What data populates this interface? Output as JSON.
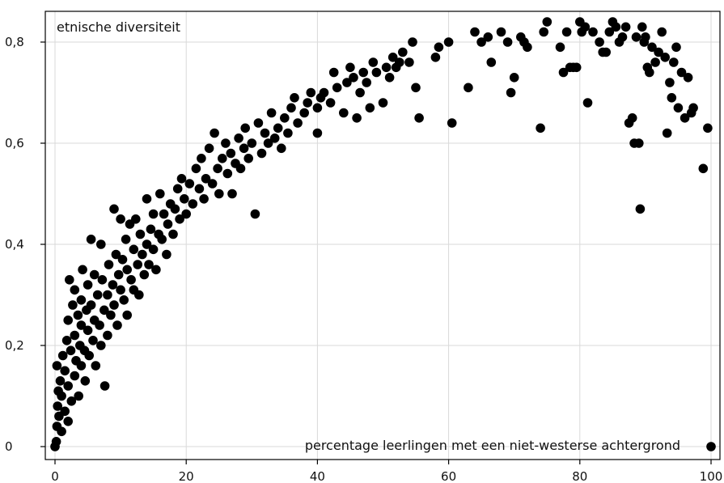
{
  "chart_data": {
    "type": "scatter",
    "title": "",
    "xlabel": "percentage leerlingen met een niet-westerse achtergrond",
    "ylabel": "etnische diversiteit",
    "xlim": [
      0,
      100
    ],
    "ylim": [
      0,
      0.85
    ],
    "x_ticks": [
      0,
      20,
      40,
      60,
      80,
      100
    ],
    "x_tick_labels": [
      "0",
      "20",
      "40",
      "60",
      "80",
      "100"
    ],
    "y_ticks": [
      0,
      0.2,
      0.4,
      0.6,
      0.8
    ],
    "y_tick_labels": [
      "0",
      "0,2",
      "0,4",
      "0,6",
      "0,8"
    ],
    "grid": true,
    "point_color": "#000000",
    "series": [
      {
        "values": [
          [
            0,
            0
          ],
          [
            0.2,
            0.01
          ],
          [
            0.3,
            0.04
          ],
          [
            0.4,
            0.08
          ],
          [
            0.5,
            0.11
          ],
          [
            0.3,
            0.16
          ],
          [
            0.6,
            0.06
          ],
          [
            0.8,
            0.13
          ],
          [
            1,
            0.03
          ],
          [
            1,
            0.1
          ],
          [
            1.2,
            0.18
          ],
          [
            1.5,
            0.07
          ],
          [
            1.5,
            0.15
          ],
          [
            1.8,
            0.21
          ],
          [
            2,
            0.05
          ],
          [
            2,
            0.12
          ],
          [
            2,
            0.25
          ],
          [
            2.2,
            0.33
          ],
          [
            2.4,
            0.19
          ],
          [
            2.5,
            0.09
          ],
          [
            2.7,
            0.28
          ],
          [
            3,
            0.14
          ],
          [
            3,
            0.22
          ],
          [
            3,
            0.31
          ],
          [
            3.2,
            0.17
          ],
          [
            3.5,
            0.26
          ],
          [
            3.6,
            0.1
          ],
          [
            3.8,
            0.2
          ],
          [
            4,
            0.16
          ],
          [
            4,
            0.29
          ],
          [
            4,
            0.24
          ],
          [
            4.2,
            0.35
          ],
          [
            4.5,
            0.19
          ],
          [
            4.6,
            0.13
          ],
          [
            4.8,
            0.27
          ],
          [
            5,
            0.23
          ],
          [
            5,
            0.32
          ],
          [
            5.2,
            0.18
          ],
          [
            5.5,
            0.41
          ],
          [
            5.5,
            0.28
          ],
          [
            5.8,
            0.21
          ],
          [
            6,
            0.25
          ],
          [
            6,
            0.34
          ],
          [
            6.2,
            0.16
          ],
          [
            6.5,
            0.3
          ],
          [
            6.8,
            0.24
          ],
          [
            7,
            0.4
          ],
          [
            7,
            0.2
          ],
          [
            7.2,
            0.33
          ],
          [
            7.5,
            0.27
          ],
          [
            7.6,
            0.12
          ],
          [
            8,
            0.3
          ],
          [
            8,
            0.22
          ],
          [
            8.2,
            0.36
          ],
          [
            8.5,
            0.26
          ],
          [
            8.8,
            0.32
          ],
          [
            9,
            0.47
          ],
          [
            9,
            0.28
          ],
          [
            9.3,
            0.38
          ],
          [
            9.5,
            0.24
          ],
          [
            9.7,
            0.34
          ],
          [
            10,
            0.45
          ],
          [
            10,
            0.31
          ],
          [
            10.3,
            0.37
          ],
          [
            10.5,
            0.29
          ],
          [
            10.8,
            0.41
          ],
          [
            11,
            0.35
          ],
          [
            11,
            0.26
          ],
          [
            11.4,
            0.44
          ],
          [
            11.6,
            0.33
          ],
          [
            12,
            0.39
          ],
          [
            12,
            0.31
          ],
          [
            12.3,
            0.45
          ],
          [
            12.6,
            0.36
          ],
          [
            12.8,
            0.3
          ],
          [
            13,
            0.42
          ],
          [
            13.3,
            0.38
          ],
          [
            13.6,
            0.34
          ],
          [
            14,
            0.49
          ],
          [
            14,
            0.4
          ],
          [
            14.3,
            0.36
          ],
          [
            14.6,
            0.43
          ],
          [
            15,
            0.39
          ],
          [
            15,
            0.46
          ],
          [
            15.4,
            0.35
          ],
          [
            15.8,
            0.42
          ],
          [
            16,
            0.5
          ],
          [
            16.3,
            0.41
          ],
          [
            16.6,
            0.46
          ],
          [
            17,
            0.38
          ],
          [
            17.2,
            0.44
          ],
          [
            17.6,
            0.48
          ],
          [
            18,
            0.42
          ],
          [
            18.3,
            0.47
          ],
          [
            18.7,
            0.51
          ],
          [
            19,
            0.45
          ],
          [
            19.3,
            0.53
          ],
          [
            19.7,
            0.49
          ],
          [
            20,
            0.46
          ],
          [
            20.5,
            0.52
          ],
          [
            21,
            0.48
          ],
          [
            21.5,
            0.55
          ],
          [
            22,
            0.51
          ],
          [
            22.3,
            0.57
          ],
          [
            22.7,
            0.49
          ],
          [
            23,
            0.53
          ],
          [
            23.5,
            0.59
          ],
          [
            24,
            0.52
          ],
          [
            24.3,
            0.62
          ],
          [
            24.8,
            0.55
          ],
          [
            25,
            0.5
          ],
          [
            25.5,
            0.57
          ],
          [
            26,
            0.6
          ],
          [
            26.3,
            0.54
          ],
          [
            26.8,
            0.58
          ],
          [
            27,
            0.5
          ],
          [
            27.5,
            0.56
          ],
          [
            28,
            0.61
          ],
          [
            28.3,
            0.55
          ],
          [
            28.8,
            0.59
          ],
          [
            29,
            0.63
          ],
          [
            29.5,
            0.57
          ],
          [
            30,
            0.6
          ],
          [
            30.5,
            0.46
          ],
          [
            31,
            0.64
          ],
          [
            31.5,
            0.58
          ],
          [
            32,
            0.62
          ],
          [
            32.5,
            0.6
          ],
          [
            33,
            0.66
          ],
          [
            33.5,
            0.61
          ],
          [
            34,
            0.63
          ],
          [
            34.5,
            0.59
          ],
          [
            35,
            0.65
          ],
          [
            35.5,
            0.62
          ],
          [
            36,
            0.67
          ],
          [
            36.5,
            0.69
          ],
          [
            37,
            0.64
          ],
          [
            38,
            0.66
          ],
          [
            38.5,
            0.68
          ],
          [
            39,
            0.7
          ],
          [
            40,
            0.67
          ],
          [
            40,
            0.62
          ],
          [
            40.5,
            0.69
          ],
          [
            41,
            0.7
          ],
          [
            42,
            0.68
          ],
          [
            42.5,
            0.74
          ],
          [
            43,
            0.71
          ],
          [
            44,
            0.66
          ],
          [
            44.5,
            0.72
          ],
          [
            45,
            0.75
          ],
          [
            45.5,
            0.73
          ],
          [
            46,
            0.65
          ],
          [
            46.5,
            0.7
          ],
          [
            47,
            0.74
          ],
          [
            47.5,
            0.72
          ],
          [
            48,
            0.67
          ],
          [
            48.5,
            0.76
          ],
          [
            49,
            0.74
          ],
          [
            50,
            0.68
          ],
          [
            50.5,
            0.75
          ],
          [
            51,
            0.73
          ],
          [
            51.5,
            0.77
          ],
          [
            52,
            0.75
          ],
          [
            52.5,
            0.76
          ],
          [
            53,
            0.78
          ],
          [
            54,
            0.76
          ],
          [
            54.5,
            0.8
          ],
          [
            55,
            0.71
          ],
          [
            55.5,
            0.65
          ],
          [
            58,
            0.77
          ],
          [
            58.5,
            0.79
          ],
          [
            60,
            0.8
          ],
          [
            60.5,
            0.64
          ],
          [
            63,
            0.71
          ],
          [
            64,
            0.82
          ],
          [
            65,
            0.8
          ],
          [
            66,
            0.81
          ],
          [
            66.5,
            0.76
          ],
          [
            68,
            0.82
          ],
          [
            69,
            0.8
          ],
          [
            69.5,
            0.7
          ],
          [
            70,
            0.73
          ],
          [
            71,
            0.81
          ],
          [
            71.5,
            0.8
          ],
          [
            72,
            0.79
          ],
          [
            74,
            0.63
          ],
          [
            74.5,
            0.82
          ],
          [
            75,
            0.84
          ],
          [
            77,
            0.79
          ],
          [
            77.5,
            0.74
          ],
          [
            78,
            0.82
          ],
          [
            78.5,
            0.75
          ],
          [
            79,
            0.75
          ],
          [
            79.5,
            0.75
          ],
          [
            80,
            0.84
          ],
          [
            80.3,
            0.82
          ],
          [
            80.8,
            0.83
          ],
          [
            81.2,
            0.68
          ],
          [
            82,
            0.82
          ],
          [
            83,
            0.8
          ],
          [
            83.5,
            0.78
          ],
          [
            84,
            0.78
          ],
          [
            84.5,
            0.82
          ],
          [
            85,
            0.84
          ],
          [
            85.5,
            0.83
          ],
          [
            86,
            0.8
          ],
          [
            86.5,
            0.81
          ],
          [
            87,
            0.83
          ],
          [
            87.5,
            0.64
          ],
          [
            88,
            0.65
          ],
          [
            88.3,
            0.6
          ],
          [
            88.6,
            0.81
          ],
          [
            89,
            0.6
          ],
          [
            89.2,
            0.47
          ],
          [
            89.5,
            0.83
          ],
          [
            89.8,
            0.8
          ],
          [
            90,
            0.81
          ],
          [
            90.3,
            0.75
          ],
          [
            90.6,
            0.74
          ],
          [
            91,
            0.79
          ],
          [
            91.5,
            0.76
          ],
          [
            92,
            0.78
          ],
          [
            92.5,
            0.82
          ],
          [
            93,
            0.77
          ],
          [
            93.3,
            0.62
          ],
          [
            93.7,
            0.72
          ],
          [
            94,
            0.69
          ],
          [
            94.3,
            0.76
          ],
          [
            94.7,
            0.79
          ],
          [
            95,
            0.67
          ],
          [
            95.5,
            0.74
          ],
          [
            96,
            0.65
          ],
          [
            96.5,
            0.73
          ],
          [
            97,
            0.66
          ],
          [
            97.3,
            0.67
          ],
          [
            98.8,
            0.55
          ],
          [
            99.5,
            0.63
          ],
          [
            100,
            0
          ]
        ]
      }
    ]
  }
}
